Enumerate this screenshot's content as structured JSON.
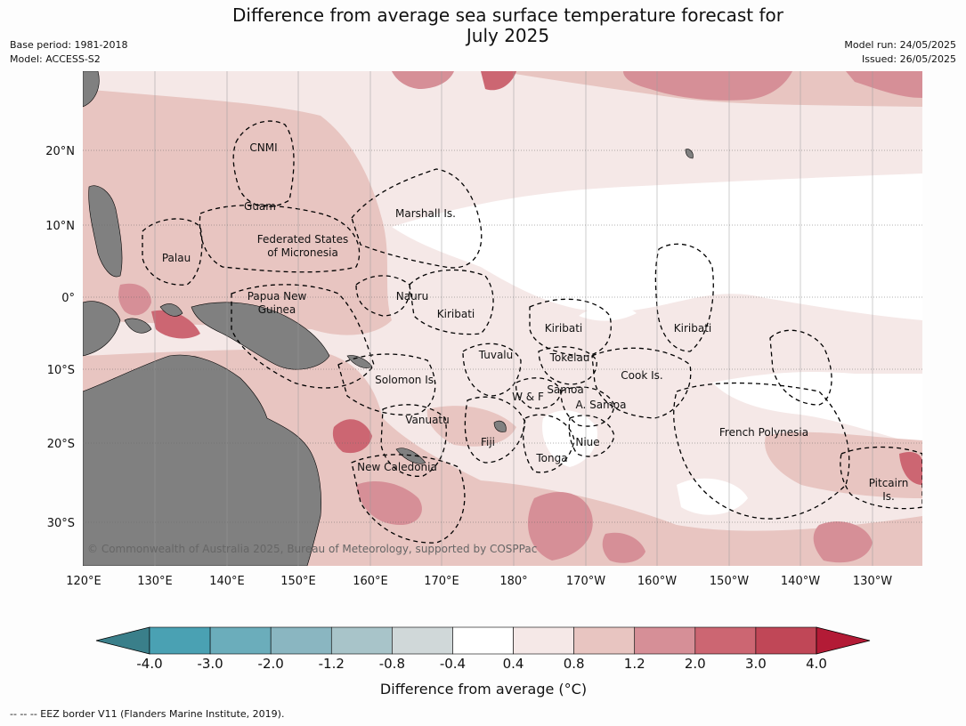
{
  "title_line1": "Difference from average sea surface temperature forecast for",
  "title_line2": "July 2025",
  "meta_left": [
    "Base period: 1981-2018",
    "Model: ACCESS-S2"
  ],
  "meta_right": [
    "Model run: 24/05/2025",
    "Issued: 26/05/2025"
  ],
  "lat_labels": [
    "20°N",
    "10°N",
    "0°",
    "10°S",
    "20°S",
    "30°S"
  ],
  "lon_labels": [
    "120°E",
    "130°E",
    "140°E",
    "150°E",
    "160°E",
    "170°E",
    "180°",
    "170°W",
    "160°W",
    "150°W",
    "140°W",
    "130°W"
  ],
  "places": [
    "CNMI",
    "Guam",
    "Marshall Is.",
    "Federated States",
    "of Micronesia",
    "Palau",
    "Papua New",
    "Guinea",
    "Nauru",
    "Kiribati",
    "Kiribati",
    "Kiribati",
    "Tuvalu",
    "Tokelau",
    "Cook Is.",
    "Solomon Is.",
    "Samoa",
    "W & F",
    "A. Samoa",
    "Vanuatu",
    "Fiji",
    "Niue",
    "Tonga",
    "New Caledonia",
    "French Polynesia",
    "Pitcairn",
    "Is."
  ],
  "copyright": "© Commonwealth of Australia 2025, Bureau of Meteorology, supported by COSPPac",
  "colorbar": {
    "ticks": [
      "-4.0",
      "-3.0",
      "-2.0",
      "-1.2",
      "-0.8",
      "-0.4",
      "0.4",
      "0.8",
      "1.2",
      "2.0",
      "3.0",
      "4.0"
    ],
    "colors": [
      "#3a7f8a",
      "#4aa1b3",
      "#6badbb",
      "#8ab6c1",
      "#a8c4c9",
      "#d0d8d9",
      "#ffffff",
      "#f5e8e7",
      "#e8c5c1",
      "#d68f97",
      "#cc6672",
      "#c04757",
      "#b31b36"
    ],
    "label": "Difference from average (°C)"
  },
  "legend_colors": {
    "land": "#808080",
    "ocean_0p4_0p8": "#f5e8e7",
    "ocean_0p8_1p2": "#e8c5c1",
    "ocean_1p2_2p0": "#d68f97",
    "ocean_2p0_3p0": "#cc6672",
    "neutral": "#ffffff"
  },
  "footnote": "--  --  -- EEZ border V11 (Flanders Marine Institute, 2019)."
}
